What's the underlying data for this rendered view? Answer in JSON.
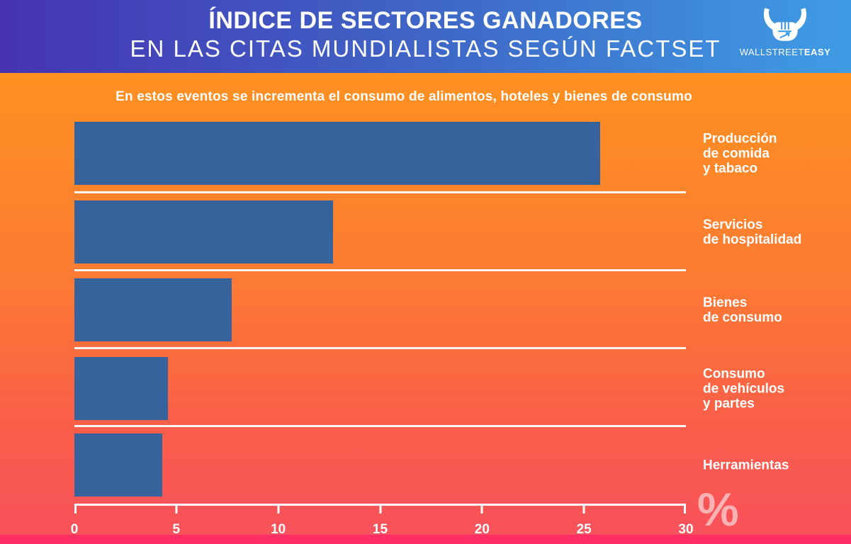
{
  "header": {
    "title_line1": "ÍNDICE DE SECTORES GANADORES",
    "title_line2": "EN LAS CITAS MUNDIALISTAS SEGÚN FACTSET",
    "brand": {
      "part1": "WALLSTREET",
      "part2": "EASY",
      "icon": "bull-fist-icon"
    }
  },
  "subtitle": "En estos eventos se incrementa el consumo de alimentos, hoteles y bienes de consumo",
  "chart_data": {
    "type": "bar",
    "orientation": "horizontal",
    "title": "Índice de sectores ganadores en las citas mundialistas según FactSet",
    "categories": [
      "Producción\nde comida\ny tabaco",
      "Servicios\nde hospitalidad",
      "Bienes\nde consumo",
      "Consumo\nde vehículos\ny partes",
      "Herramientas"
    ],
    "values": [
      25.8,
      12.7,
      7.7,
      4.6,
      4.3
    ],
    "x_axis": {
      "min": 0,
      "max": 30,
      "ticks": [
        0,
        5,
        10,
        15,
        20,
        25,
        30
      ]
    },
    "unit_label": "%",
    "xlabel": "%",
    "ylabel": "",
    "grid": false,
    "legend": false,
    "bar_color": "#36639C"
  },
  "colors": {
    "header_gradient_left": "#4633B2",
    "header_gradient_right": "#3F9CE4",
    "body_gradient_top": "#FE9120",
    "body_gradient_bottom": "#F8515B",
    "footer_strip": "#FC2E63",
    "bar": "#36639C",
    "text": "#FFFFFF"
  }
}
